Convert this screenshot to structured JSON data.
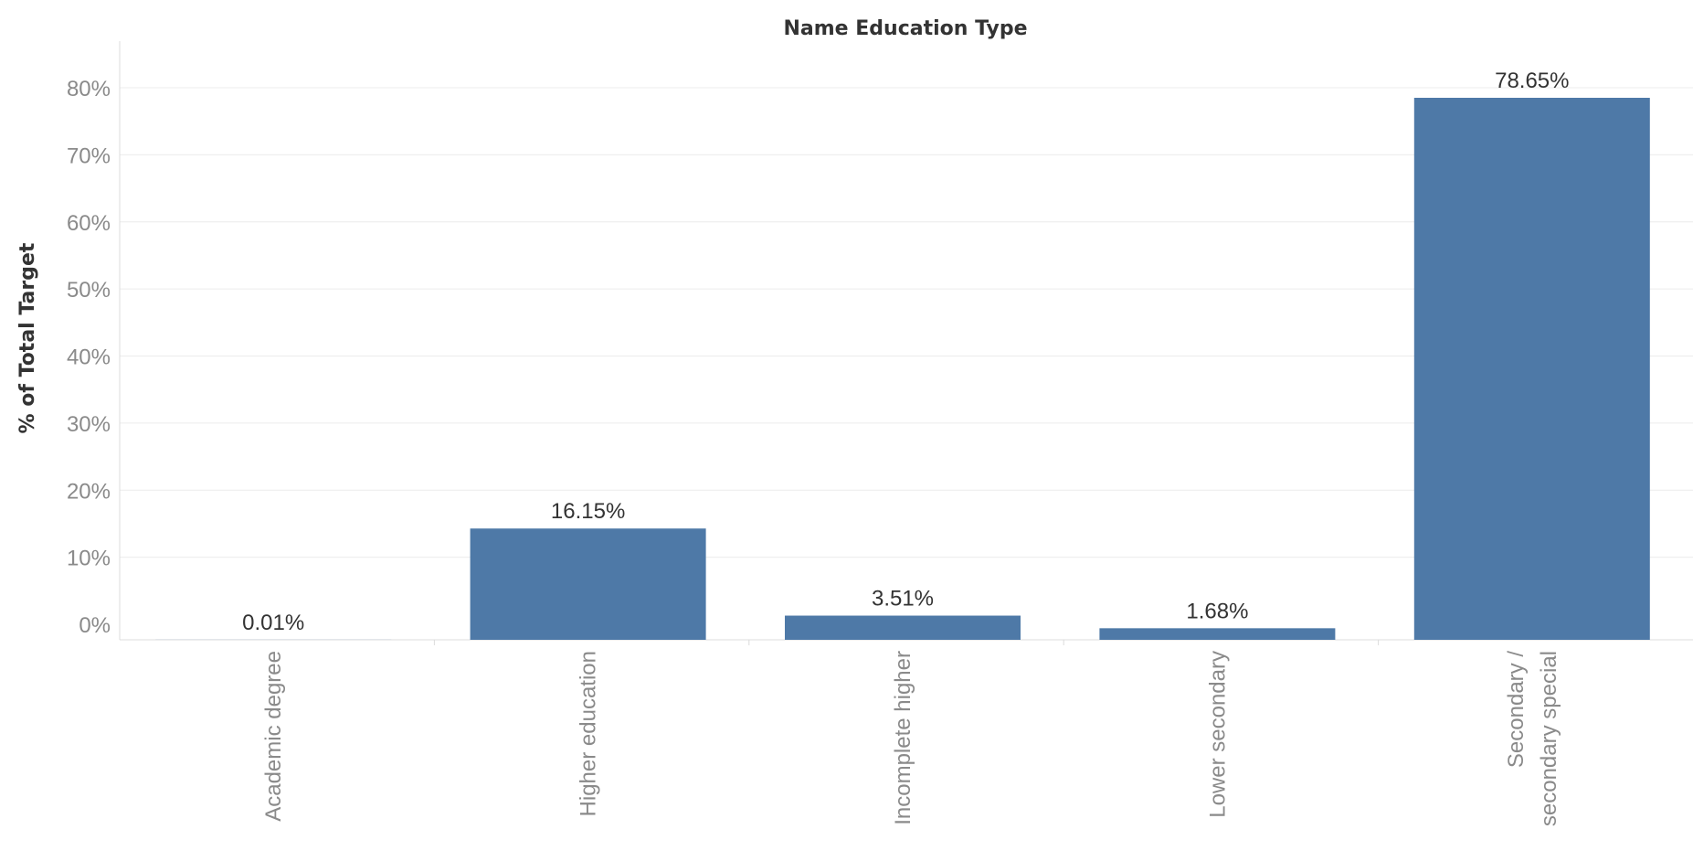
{
  "chart_data": {
    "type": "bar",
    "title": "Name Education Type",
    "ylabel": "% of Total Target",
    "xlabel": "",
    "categories": [
      "Academic degree",
      "Higher education",
      "Incomplete higher",
      "Lower secondary",
      "Secondary / secondary special"
    ],
    "category_label_lines": [
      [
        "Academic degree"
      ],
      [
        "Higher education"
      ],
      [
        "Incomplete higher"
      ],
      [
        "Lower secondary"
      ],
      [
        "Secondary /",
        "secondary special"
      ]
    ],
    "values": [
      0.01,
      16.15,
      3.51,
      1.68,
      78.65
    ],
    "data_labels": [
      "0.01%",
      "16.15%",
      "3.51%",
      "1.68%",
      "78.65%"
    ],
    "yticks": [
      0,
      10,
      20,
      30,
      40,
      50,
      60,
      70,
      80
    ],
    "ytick_labels": [
      "0%",
      "10%",
      "20%",
      "30%",
      "40%",
      "50%",
      "60%",
      "70%",
      "80%"
    ],
    "ylim": [
      0,
      80
    ],
    "grid": true,
    "bar_color": "#4e79a7"
  }
}
